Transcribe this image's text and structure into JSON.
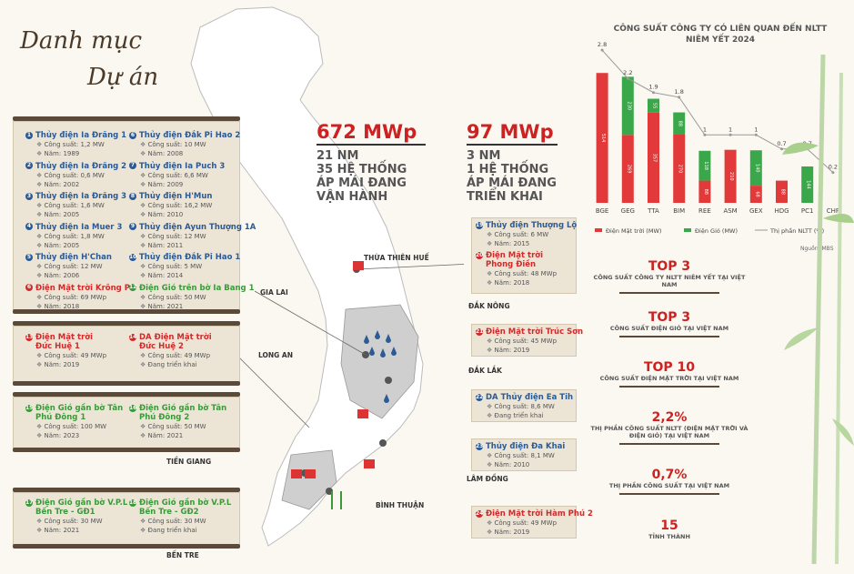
{
  "title": {
    "line1": "Danh mục",
    "line2": "Dự án"
  },
  "left_groups": [
    [
      {
        "n": "1",
        "name": "Thủy điện Ia Đrăng 1",
        "cs": "Công suất: 1,2 MW",
        "nam": "Năm: 1989",
        "color": "blue"
      },
      {
        "n": "2",
        "name": "Thủy điện Ia Đrăng 2",
        "cs": "Công suất: 0,6 MW",
        "nam": "Năm: 2002",
        "color": "blue"
      },
      {
        "n": "3",
        "name": "Thủy điện Ia Đrăng 3",
        "cs": "Công suất: 1,6 MW",
        "nam": "Năm: 2005",
        "color": "blue"
      },
      {
        "n": "4",
        "name": "Thủy điện Ia Muer 3",
        "cs": "Công suất: 1,8 MW",
        "nam": "Năm: 2005",
        "color": "blue"
      },
      {
        "n": "5",
        "name": "Thủy điện H'Chan",
        "cs": "Công suất: 12 MW",
        "nam": "Năm: 2006",
        "color": "blue"
      },
      {
        "n": "6",
        "name": "Điện Mặt trời Krông Pa",
        "cs": "Công suất: 69 MWp",
        "nam": "Năm: 2018",
        "color": "red"
      }
    ],
    [
      {
        "n": "6",
        "name": "Thủy điện Đắk Pi Hao 2",
        "cs": "Công suất: 10 MW",
        "nam": "Năm: 2008",
        "color": "blue"
      },
      {
        "n": "7",
        "name": "Thủy điện Ia Puch 3",
        "cs": "Công suất: 6,6 MW",
        "nam": "Năm: 2009",
        "color": "blue"
      },
      {
        "n": "8",
        "name": "Thủy điện H'Mun",
        "cs": "Công suất: 16,2 MW",
        "nam": "Năm: 2010",
        "color": "blue"
      },
      {
        "n": "9",
        "name": "Thủy điện Ayun Thượng 1A",
        "cs": "Công suất: 12 MW",
        "nam": "Năm: 2011",
        "color": "blue"
      },
      {
        "n": "10",
        "name": "Thủy điện Đắk Pi Hao 1",
        "cs": "Công suất: 5 MW",
        "nam": "Năm: 2014",
        "color": "blue"
      },
      {
        "n": "12",
        "name": "Điện Gió trên bờ Ia Bang 1",
        "cs": "Công suất: 50 MW",
        "nam": "Năm: 2021",
        "color": "green"
      }
    ],
    [
      {
        "n": "13",
        "name": "Điện Mặt trời",
        "name2": "Đức Huệ 1",
        "cs": "Công suất: 49 MWp",
        "nam": "Năm: 2019",
        "color": "red"
      },
      {
        "n": "14",
        "name": "DA Điện Mặt trời",
        "name2": "Đức Huệ 2",
        "cs": "Công suất: 49 MWp",
        "nam": "Đang triển khai",
        "color": "red"
      }
    ],
    [
      {
        "n": "15",
        "name": "Điện Gió gần bờ Tân",
        "name2": "Phú Đông 1",
        "cs": "Công suất: 100 MW",
        "nam": "Năm: 2023",
        "color": "green"
      },
      {
        "n": "16",
        "name": "Điện Gió gần bờ Tân",
        "name2": "Phú Đông 2",
        "cs": "Công suất: 50 MW",
        "nam": "Năm: 2021",
        "color": "green"
      }
    ],
    [
      {
        "n": "17",
        "name": "Điện Gió gần bờ V.P.L",
        "name2": "Bến Tre - GĐ1",
        "cs": "Công suất: 30 MW",
        "nam": "Năm: 2021",
        "color": "green"
      },
      {
        "n": "18",
        "name": "Điện Gió gần bờ V.P.L",
        "name2": "Bến Tre - GĐ2",
        "cs": "Công suất: 30 MW",
        "nam": "Đang triển khai",
        "color": "green"
      }
    ]
  ],
  "regions": {
    "thua_thien_hue": "THỪA THIÊN HUẾ",
    "gia_lai": "GIA LAI",
    "long_an": "LONG AN",
    "tien_giang": "TIỀN GIANG",
    "ben_tre": "BẾN TRE",
    "dak_nong": "ĐẮK NÔNG",
    "dak_lak": "ĐẮK LẮK",
    "lam_dong": "LÂM ĐỒNG",
    "binh_thuan": "BÌNH THUẬN"
  },
  "stat_operating": {
    "value": "672 MWp",
    "l1": "21 NM",
    "l2": "35 HỆ THỐNG",
    "l3": "ÁP MÁI ĐANG",
    "l4": "VẬN HÀNH"
  },
  "stat_pending": {
    "value": "97 MWp",
    "l1": "3 NM",
    "l2": "1 HỆ THỐNG",
    "l3": "ÁP MÁI ĐANG",
    "l4": "TRIỂN KHAI"
  },
  "right_projects": [
    {
      "n": "19",
      "name": "Thủy điện Thượng Lộ",
      "cs": "Công suất: 6 MW",
      "nam": "Năm: 2015",
      "color": "blue"
    },
    {
      "n": "20",
      "name": "Điện Mặt trời",
      "name2": "Phong Điền",
      "cs": "Công suất: 48 MWp",
      "nam": "Năm: 2018",
      "color": "red"
    },
    {
      "n": "21",
      "name": "Điện Mặt trời Trúc Sơn",
      "cs": "Công suất: 45 MWp",
      "nam": "Năm: 2019",
      "color": "red"
    },
    {
      "n": "22",
      "name": "DA Thủy điện Ea Tih",
      "cs": "Công suất: 8,6 MW",
      "nam": "Đang triển khai",
      "color": "blue"
    },
    {
      "n": "23",
      "name": "Thủy điện Đa Khai",
      "cs": "Công suất: 8,1 MW",
      "nam": "Năm: 2010",
      "color": "blue"
    },
    {
      "n": "24",
      "name": "Điện Mặt trời Hàm Phú 2",
      "cs": "Công suất: 49 MWp",
      "nam": "Năm: 2019",
      "color": "red"
    }
  ],
  "chart_data": {
    "type": "bar",
    "title": "CÔNG SUẤT CÔNG TY CÓ LIÊN QUAN ĐẾN NLTT NIÊM YẾT 2024",
    "categories": [
      "BGE",
      "GEG",
      "TTA",
      "BIM",
      "REE",
      "ASM",
      "GEX",
      "HDG",
      "PC1",
      "CHP"
    ],
    "series": [
      {
        "name": "Điện Mặt trời (MW)",
        "color": "#e23a3a",
        "values": [
          514,
          269,
          357,
          270,
          88,
          210,
          68,
          88,
          0,
          0
        ]
      },
      {
        "name": "Điện Gió (MW)",
        "color": "#3aa84a",
        "values": [
          0,
          230,
          55,
          88,
          118,
          0,
          140,
          0,
          144,
          0
        ]
      },
      {
        "name": "Thị phần NLTT (%)",
        "color": "#999999",
        "type": "line",
        "values": [
          2.8,
          2.2,
          1.9,
          1.8,
          1.0,
          1.0,
          1.0,
          0.7,
          0.7,
          0.2
        ]
      }
    ],
    "bar_labels": {
      "solar": [
        "514",
        "269",
        "357",
        "270",
        "88",
        "210",
        "68",
        "88",
        "",
        ""
      ],
      "wind": [
        "",
        "230",
        "55",
        "88",
        "118",
        "",
        "140",
        "",
        "144",
        ""
      ]
    },
    "source": "Nguồn: MBS"
  },
  "ranks": [
    {
      "big": "TOP 3",
      "sub": "CÔNG SUẤT CÔNG TY NLTT NIÊM YẾT TẠI VIỆT NAM"
    },
    {
      "big": "TOP 3",
      "sub": "CÔNG SUẤT ĐIỆN GIÓ TẠI VIỆT NAM"
    },
    {
      "big": "TOP 10",
      "sub": "CÔNG SUẤT ĐIỆN MẶT TRỜI TẠI VIỆT NAM"
    },
    {
      "big": "2,2%",
      "sub": "THỊ PHẦN CÔNG SUẤT NLTT (ĐIỆN MẶT TRỜI VÀ ĐIỆN GIÓ) TẠI VIỆT NAM"
    },
    {
      "big": "0,7%",
      "sub": "THỊ PHẦN CÔNG SUẤT TẠI VIỆT NAM"
    },
    {
      "big": "15",
      "sub": "TỈNH THÀNH"
    }
  ]
}
